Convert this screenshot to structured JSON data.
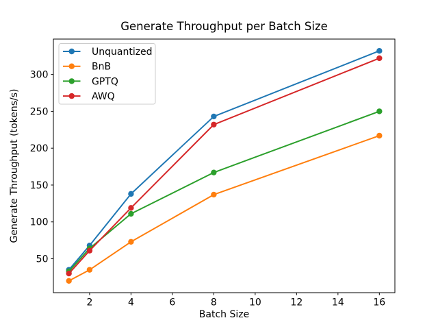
{
  "chart_data": {
    "type": "line",
    "title": "Generate Throughput per Batch Size",
    "xlabel": "Batch Size",
    "ylabel": "Generate Throughput (tokens/s)",
    "x": [
      1,
      2,
      4,
      8,
      16
    ],
    "series": [
      {
        "name": "Unquantized",
        "color": "#1f77b4",
        "values": [
          35,
          68,
          138,
          243,
          332
        ]
      },
      {
        "name": "BnB",
        "color": "#ff7f0e",
        "values": [
          20,
          35,
          73,
          137,
          217
        ]
      },
      {
        "name": "GPTQ",
        "color": "#2ca02c",
        "values": [
          33,
          64,
          111,
          167,
          250
        ]
      },
      {
        "name": "AWQ",
        "color": "#d62728",
        "values": [
          30,
          61,
          119,
          232,
          322
        ]
      }
    ],
    "xlim": [
      0.25,
      16.75
    ],
    "ylim": [
      4,
      348
    ],
    "xticks": [
      2,
      4,
      6,
      8,
      10,
      12,
      14,
      16
    ],
    "yticks": [
      50,
      100,
      150,
      200,
      250,
      300
    ],
    "grid": false,
    "marker": "o",
    "legend": {
      "position": "upper left",
      "entries": [
        "Unquantized",
        "BnB",
        "GPTQ",
        "AWQ"
      ]
    },
    "colors": {
      "background": "#ffffff",
      "text": "#000000",
      "spine": "#000000",
      "legend_border": "#cccccc",
      "legend_background": "#ffffff"
    }
  }
}
